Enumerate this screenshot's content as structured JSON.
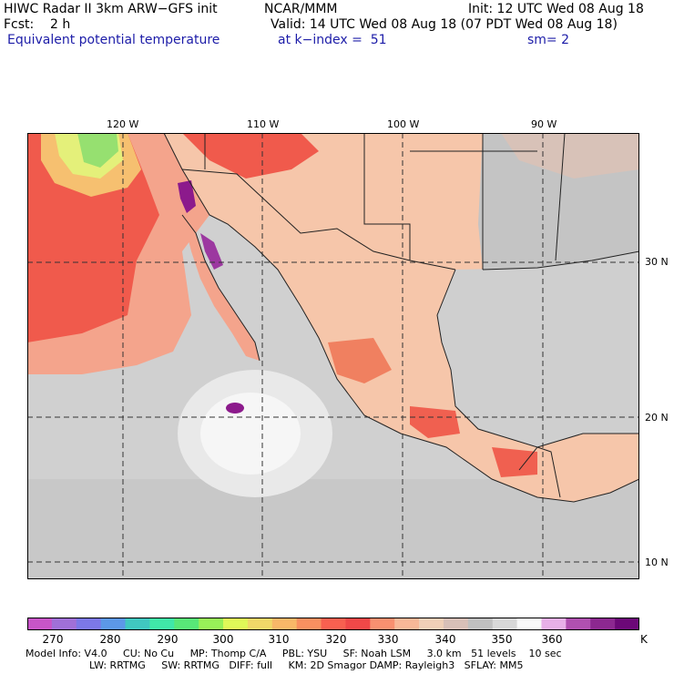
{
  "header": {
    "line1_left": "HIWC Radar II 3km ARW−GFS init",
    "line1_mid": "NCAR/MMM",
    "line1_right": "Init: 12 UTC Wed 08 Aug 18",
    "line2_left": "Fcst:    2 h",
    "line2_right": "Valid: 14 UTC Wed 08 Aug 18 (07 PDT Wed 08 Aug 18)",
    "line3_field": "Equivalent potential temperature",
    "line3_level": "at k−index =  51",
    "line3_smooth": "sm= 2"
  },
  "map": {
    "longitude_labels": [
      "120 W",
      "110 W",
      "100 W",
      "90 W"
    ],
    "latitude_labels": [
      "30 N",
      "20 N",
      "10 N"
    ],
    "colors": {
      "ocean_warm": "#f0534a",
      "ocean_mid": "#f59e88",
      "land_warm": "#f8cbb0",
      "gray": "#d6d6d6",
      "gray_dark": "#bfbfbf",
      "white": "#f2f2f2",
      "green": "#96e070",
      "yellow": "#e6f080",
      "purple": "#8c1a8c",
      "border": "#222222"
    }
  },
  "colorbar": {
    "labels": [
      "270",
      "280",
      "290",
      "300",
      "310",
      "320",
      "330",
      "340",
      "350",
      "360"
    ],
    "unit": "K",
    "colors": [
      "#c855c8",
      "#a070d8",
      "#7c78e8",
      "#5c98e8",
      "#40c8c0",
      "#40e8a8",
      "#58e878",
      "#98f058",
      "#e0f858",
      "#f0d868",
      "#f8b868",
      "#f89060",
      "#f86050",
      "#f04848",
      "#f89070",
      "#f8b898",
      "#f0d0b8",
      "#d8c0b8",
      "#c0c0c0",
      "#d8d8d8",
      "#f8f8f8",
      "#e8b0e8",
      "#b050b0",
      "#8c2890",
      "#6c0878"
    ]
  },
  "footer": {
    "line1": "Model Info: V4.0     CU: No Cu     MP: Thomp C/A     PBL: YSU     SF: Noah LSM     3.0 km   51 levels    10 sec",
    "line2": "LW: RRTMG     SW: RRTMG   DIFF: full     KM: 2D Smagor DAMP: Rayleigh3   SFLAY: MM5"
  }
}
